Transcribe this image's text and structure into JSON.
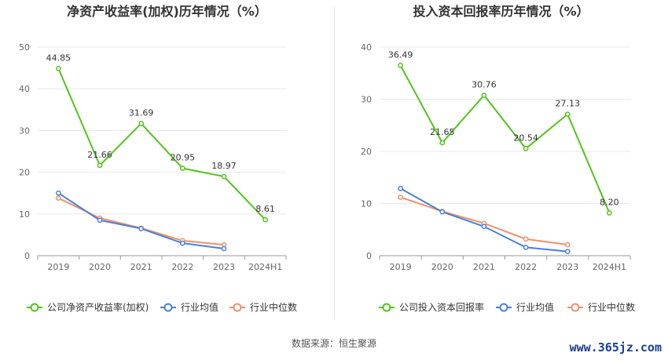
{
  "footer": {
    "source": "数据来源：恒生聚源",
    "watermark": "www.365jz.com"
  },
  "chart_data": [
    {
      "type": "line",
      "title": "净资产收益率(加权)历年情况（%）",
      "categories": [
        "2019",
        "2020",
        "2021",
        "2022",
        "2023",
        "2024H1"
      ],
      "ylim": [
        0,
        50
      ],
      "yticks": [
        0,
        10,
        20,
        30,
        40,
        50
      ],
      "grid": true,
      "legend_position": "bottom",
      "series": [
        {
          "name": "公司净资产收益率(加权)",
          "color": "#52c41a",
          "values": [
            44.85,
            21.66,
            31.69,
            20.95,
            18.97,
            8.61
          ],
          "labels": [
            "44.85",
            "21.66",
            "31.69",
            "20.95",
            "18.97",
            "8.61"
          ]
        },
        {
          "name": "行业均值",
          "color": "#4a7fdb",
          "values": [
            15.0,
            8.5,
            6.5,
            3.0,
            1.7,
            null
          ]
        },
        {
          "name": "行业中位数",
          "color": "#f0906a",
          "values": [
            13.8,
            9.0,
            6.6,
            3.6,
            2.6,
            null
          ]
        }
      ]
    },
    {
      "type": "line",
      "title": "投入资本回报率历年情况（%）",
      "categories": [
        "2019",
        "2020",
        "2021",
        "2022",
        "2023",
        "2024H1"
      ],
      "ylim": [
        0,
        40
      ],
      "yticks": [
        0,
        10,
        20,
        30,
        40
      ],
      "grid": true,
      "legend_position": "bottom",
      "series": [
        {
          "name": "公司投入资本回报率",
          "color": "#52c41a",
          "values": [
            36.49,
            21.65,
            30.76,
            20.54,
            27.13,
            8.2
          ],
          "labels": [
            "36.49",
            "21.65",
            "30.76",
            "20.54",
            "27.13",
            "8.20"
          ]
        },
        {
          "name": "行业均值",
          "color": "#4a7fdb",
          "values": [
            12.9,
            8.4,
            5.6,
            1.6,
            0.8,
            null
          ]
        },
        {
          "name": "行业中位数",
          "color": "#f0906a",
          "values": [
            11.2,
            8.5,
            6.2,
            3.2,
            2.1,
            null
          ]
        }
      ]
    }
  ]
}
